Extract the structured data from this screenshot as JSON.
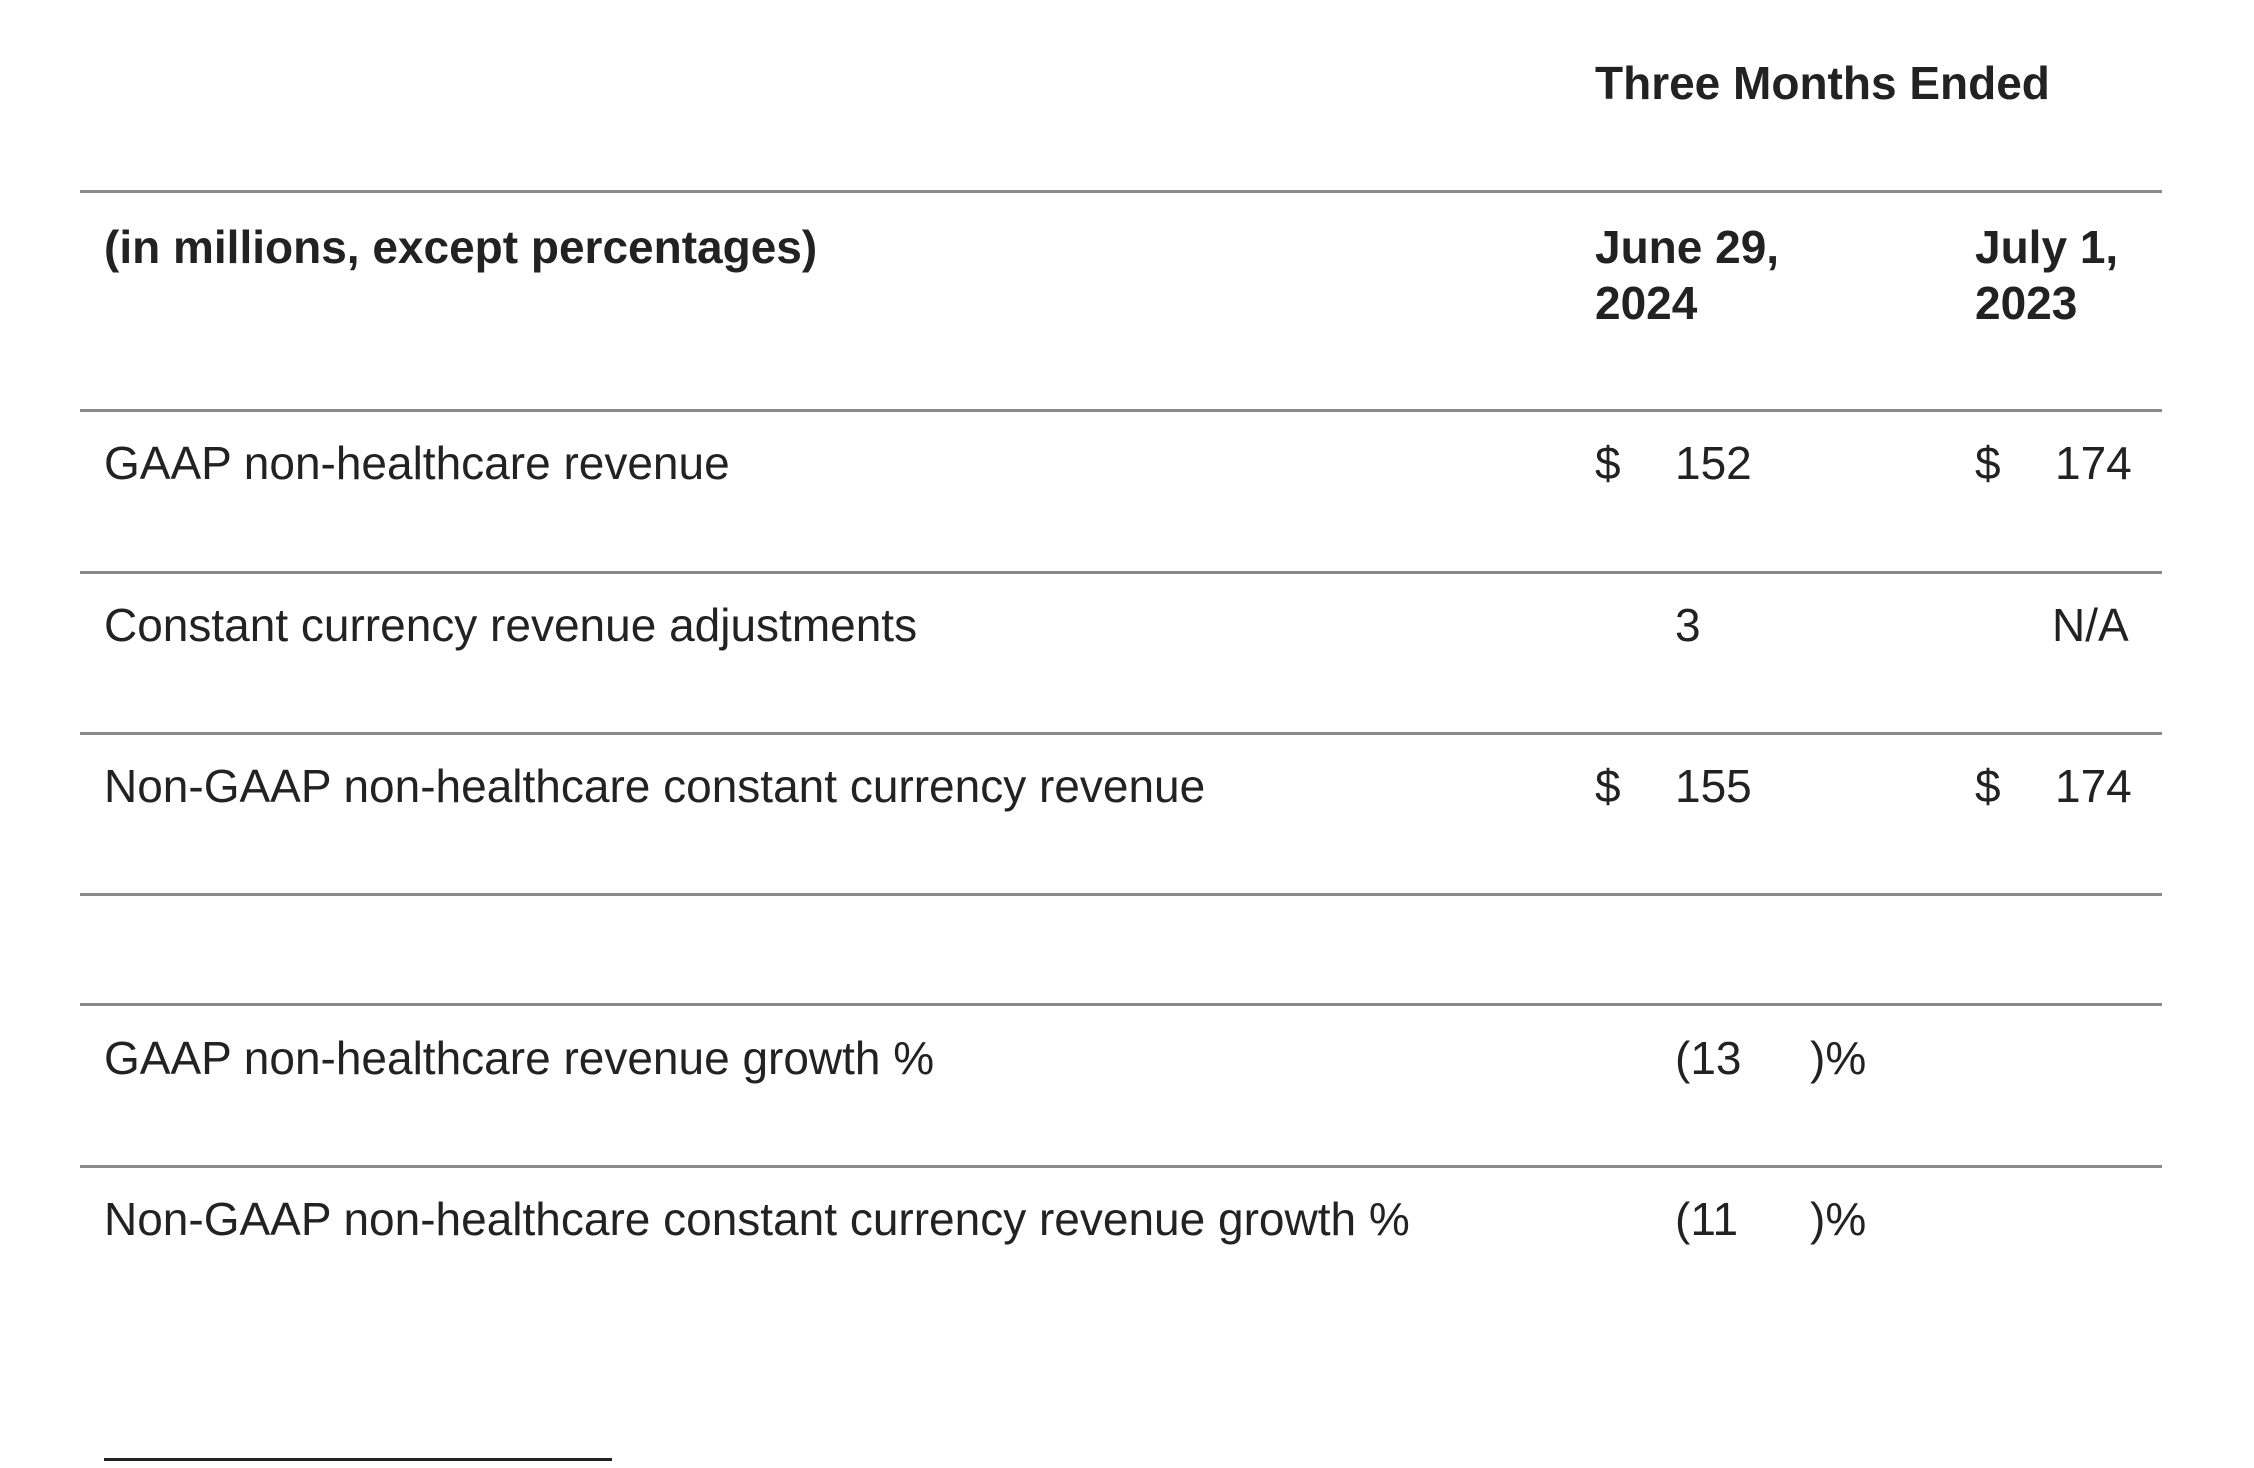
{
  "header": {
    "period_label": "Three Months Ended",
    "units_label": "(in millions, except percentages)",
    "col1_line1": "June 29,",
    "col1_line2": "2024",
    "col2_line1": "July 1,",
    "col2_line2": "2023"
  },
  "rows": [
    {
      "label": "GAAP non-healthcare revenue",
      "col1_currency": "$",
      "col1_value": "152",
      "col2_currency": "$",
      "col2_value": "174"
    },
    {
      "label": "Constant currency revenue adjustments",
      "col1_currency": "",
      "col1_value": "3",
      "col2_currency": "",
      "col2_value": "N/A"
    },
    {
      "label": "Non-GAAP non-healthcare constant currency revenue",
      "col1_currency": "$",
      "col1_value": "155",
      "col2_currency": "$",
      "col2_value": "174"
    }
  ],
  "growth_rows": [
    {
      "label": "GAAP non-healthcare revenue growth %",
      "col1_value": "(13",
      "col1_suffix": ")%"
    },
    {
      "label": "Non-GAAP non-healthcare constant currency revenue growth %",
      "col1_value": "(11",
      "col1_suffix": ")%"
    }
  ]
}
